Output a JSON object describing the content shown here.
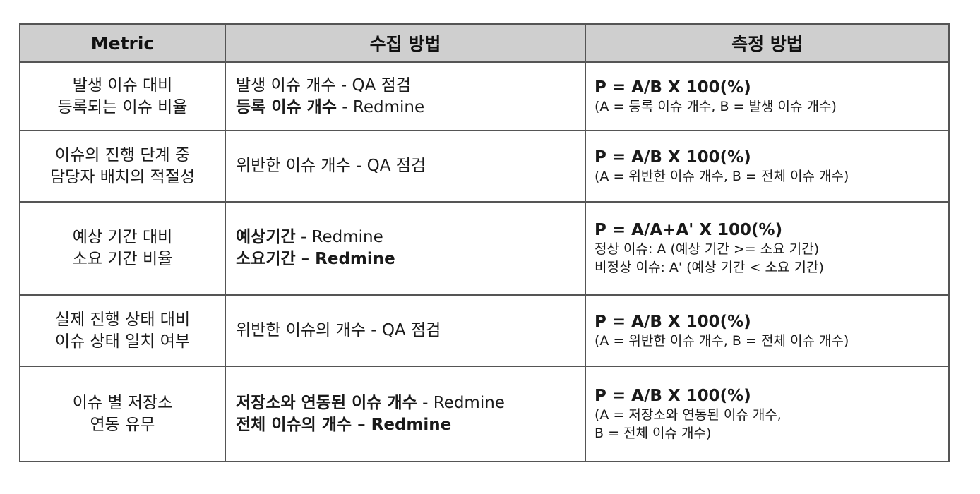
{
  "table": {
    "headers": [
      "Metric",
      "수집 방법",
      "측정 방법"
    ],
    "rows": [
      {
        "metric": [
          "발생 이슈 대비",
          "등록되는 이슈 비율"
        ],
        "collection": [
          {
            "bold": "",
            "plain": "발생 이슈 개수 - QA 점검"
          },
          {
            "bold": "등록 이슈 개수",
            "plain": " - Redmine"
          }
        ],
        "formula": "P = A/B X 100(%)",
        "notes": [
          "(A = 등록 이슈 개수, B = 발생 이슈 개수)"
        ]
      },
      {
        "metric": [
          "이슈의 진행 단계 중",
          "담당자 배치의 적절성"
        ],
        "collection": [
          {
            "bold": "",
            "plain": "위반한 이슈 개수 - QA 점검"
          }
        ],
        "formula": "P = A/B X 100(%)",
        "notes": [
          "(A = 위반한 이슈 개수, B = 전체 이슈 개수)"
        ]
      },
      {
        "metric": [
          "예상 기간 대비",
          "소요 기간 비율"
        ],
        "collection": [
          {
            "bold": "예상기간",
            "plain": " - Redmine"
          },
          {
            "bold": "소요기간 – Redmine",
            "plain": ""
          }
        ],
        "formula": "P = A/A+A' X 100(%)",
        "notes": [
          "정상 이슈: A (예상 기간 >= 소요 기간)",
          "비정상 이슈: A' (예상 기간 < 소요 기간)"
        ]
      },
      {
        "metric": [
          "실제 진행 상태 대비",
          "이슈 상태 일치 여부"
        ],
        "collection": [
          {
            "bold": "",
            "plain": "위반한 이슈의 개수 - QA 점검"
          }
        ],
        "formula": "P = A/B X 100(%)",
        "notes": [
          "(A = 위반한 이슈 개수, B = 전체 이슈 개수)"
        ]
      },
      {
        "metric": [
          "이슈 별 저장소",
          "연동 유무"
        ],
        "collection": [
          {
            "bold": "저장소와 연동된 이슈 개수",
            "plain": " - Redmine"
          },
          {
            "bold": "전체 이슈의 개수 – Redmine",
            "plain": ""
          }
        ],
        "formula": "P = A/B X 100(%)",
        "notes": [
          "(A = 저장소와 연동된 이슈 개수,",
          " B = 전체 이슈 개수)"
        ]
      }
    ]
  }
}
